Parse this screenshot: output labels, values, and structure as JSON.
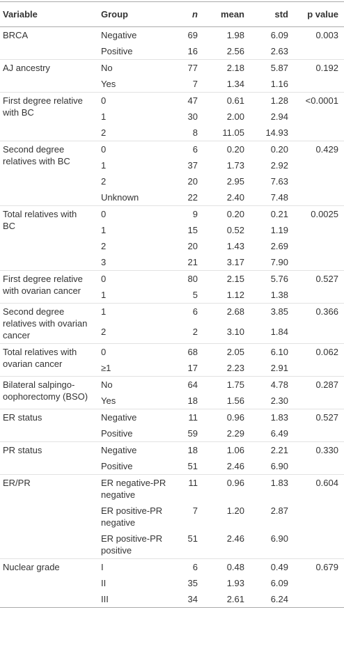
{
  "table": {
    "header": [
      "Variable",
      "Group",
      "n",
      "mean",
      "std",
      "p value"
    ],
    "groups": [
      {
        "variable": "BRCA",
        "p_value": "0.003",
        "rows": [
          [
            "Negative",
            "69",
            "1.98",
            "6.09"
          ],
          [
            "Positive",
            "16",
            "2.56",
            "2.63"
          ]
        ]
      },
      {
        "variable": "AJ ancestry",
        "p_value": "0.192",
        "rows": [
          [
            "No",
            "77",
            "2.18",
            "5.87"
          ],
          [
            "Yes",
            "7",
            "1.34",
            "1.16"
          ]
        ]
      },
      {
        "variable": "First degree relative with BC",
        "p_value": "<0.0001",
        "rows": [
          [
            "0",
            "47",
            "0.61",
            "1.28"
          ],
          [
            "1",
            "30",
            "2.00",
            "2.94"
          ],
          [
            "2",
            "8",
            "11.05",
            "14.93"
          ]
        ]
      },
      {
        "variable": "Second degree relatives with BC",
        "p_value": "0.429",
        "rows": [
          [
            "0",
            "6",
            "0.20",
            "0.20"
          ],
          [
            "1",
            "37",
            "1.73",
            "2.92"
          ],
          [
            "2",
            "20",
            "2.95",
            "7.63"
          ],
          [
            "Unknown",
            "22",
            "2.40",
            "7.48"
          ]
        ]
      },
      {
        "variable": "Total relatives with BC",
        "p_value": "0.0025",
        "rows": [
          [
            "0",
            "9",
            "0.20",
            "0.21"
          ],
          [
            "1",
            "15",
            "0.52",
            "1.19"
          ],
          [
            "2",
            "20",
            "1.43",
            "2.69"
          ],
          [
            "3",
            "21",
            "3.17",
            "7.90"
          ]
        ]
      },
      {
        "variable": "First degree relative with ovarian cancer",
        "p_value": "0.527",
        "rows": [
          [
            "0",
            "80",
            "2.15",
            "5.76"
          ],
          [
            "1",
            "5",
            "1.12",
            "1.38"
          ]
        ]
      },
      {
        "variable": "Second degree relatives with ovarian cancer",
        "p_value": "0.366",
        "rows": [
          [
            "1",
            "6",
            "2.68",
            "3.85"
          ],
          [
            "2",
            "2",
            "3.10",
            "1.84"
          ]
        ]
      },
      {
        "variable": "Total relatives with ovarian cancer",
        "p_value": "0.062",
        "rows": [
          [
            "0",
            "68",
            "2.05",
            "6.10"
          ],
          [
            "≥1",
            "17",
            "2.23",
            "2.91"
          ]
        ]
      },
      {
        "variable": "Bilateral salpingo-oophorectomy (BSO)",
        "p_value": "0.287",
        "rows": [
          [
            "No",
            "64",
            "1.75",
            "4.78"
          ],
          [
            "Yes",
            "18",
            "1.56",
            "2.30"
          ]
        ]
      },
      {
        "variable": "ER status",
        "p_value": "0.527",
        "rows": [
          [
            "Negative",
            "11",
            "0.96",
            "1.83"
          ],
          [
            "Positive",
            "59",
            "2.29",
            "6.49"
          ]
        ]
      },
      {
        "variable": "PR status",
        "p_value": "0.330",
        "rows": [
          [
            "Negative",
            "18",
            "1.06",
            "2.21"
          ],
          [
            "Positive",
            "51",
            "2.46",
            "6.90"
          ]
        ]
      },
      {
        "variable": "ER/PR",
        "p_value": "0.604",
        "rows": [
          [
            "ER negative-PR negative",
            "11",
            "0.96",
            "1.83"
          ],
          [
            "ER positive-PR negative",
            "7",
            "1.20",
            "2.87"
          ],
          [
            "ER positive-PR positive",
            "51",
            "2.46",
            "6.90"
          ]
        ]
      },
      {
        "variable": "Nuclear grade",
        "p_value": "0.679",
        "rows": [
          [
            "I",
            "6",
            "0.48",
            "0.49"
          ],
          [
            "II",
            "35",
            "1.93",
            "6.09"
          ],
          [
            "III",
            "34",
            "2.61",
            "6.24"
          ]
        ]
      }
    ]
  }
}
